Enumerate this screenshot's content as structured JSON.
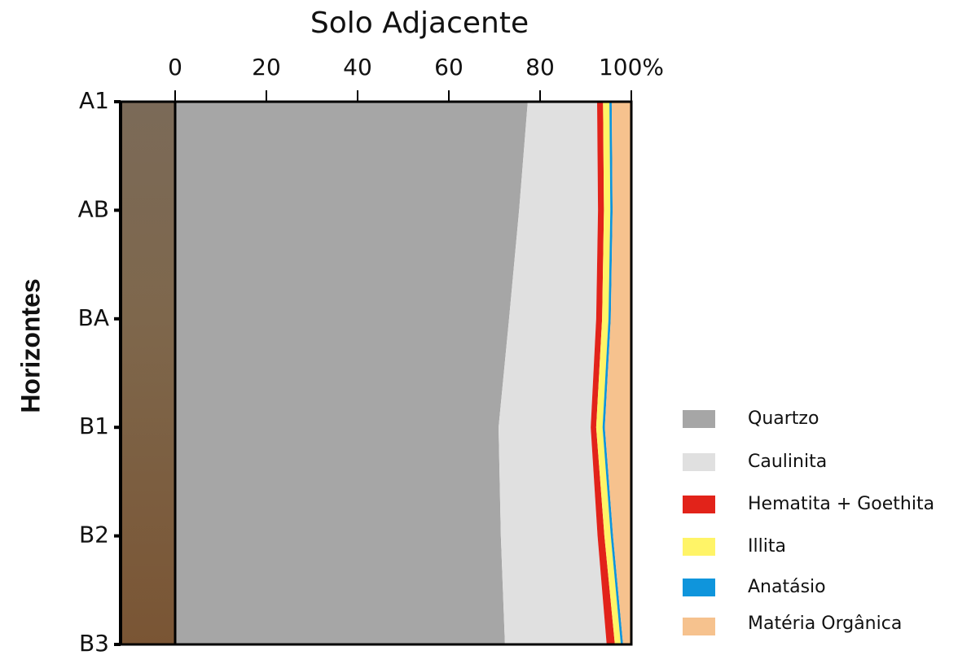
{
  "chart_data": {
    "type": "stacked_area_horizontal",
    "title": "Solo Adjacente",
    "ylabel": "Horizontes",
    "categories": [
      "A1",
      "AB",
      "BA",
      "B1",
      "B2",
      "B3"
    ],
    "series": [
      {
        "name": "Quartzo",
        "color": "#a6a6a6",
        "values": [
          77.3,
          75.4,
          73.2,
          70.9,
          71.4,
          72.3
        ]
      },
      {
        "name": "Caulinita",
        "color": "#e0e0e0",
        "values": [
          15.2,
          17.3,
          19.1,
          20.2,
          21.2,
          22.3
        ]
      },
      {
        "name": "Hematita + Goethita",
        "color": "#e2231a",
        "values": [
          1.3,
          1.3,
          1.3,
          1.2,
          1.5,
          1.8
        ]
      },
      {
        "name": "Illita",
        "color": "#fff467",
        "values": [
          1.4,
          1.4,
          1.4,
          1.4,
          1.4,
          1.3
        ]
      },
      {
        "name": "Anatásio",
        "color": "#0f95dc",
        "values": [
          0.5,
          0.5,
          0.5,
          0.5,
          0.5,
          0.5
        ]
      },
      {
        "name": "Matéria Orgânica",
        "color": "#f6c28e",
        "values": [
          4.3,
          4.1,
          4.5,
          5.8,
          4.0,
          1.8
        ]
      }
    ],
    "xlim": [
      0,
      100
    ],
    "xticks": [
      0,
      20,
      40,
      60,
      80,
      {
        "value": 100,
        "label": "100%"
      }
    ],
    "legend": "right"
  }
}
